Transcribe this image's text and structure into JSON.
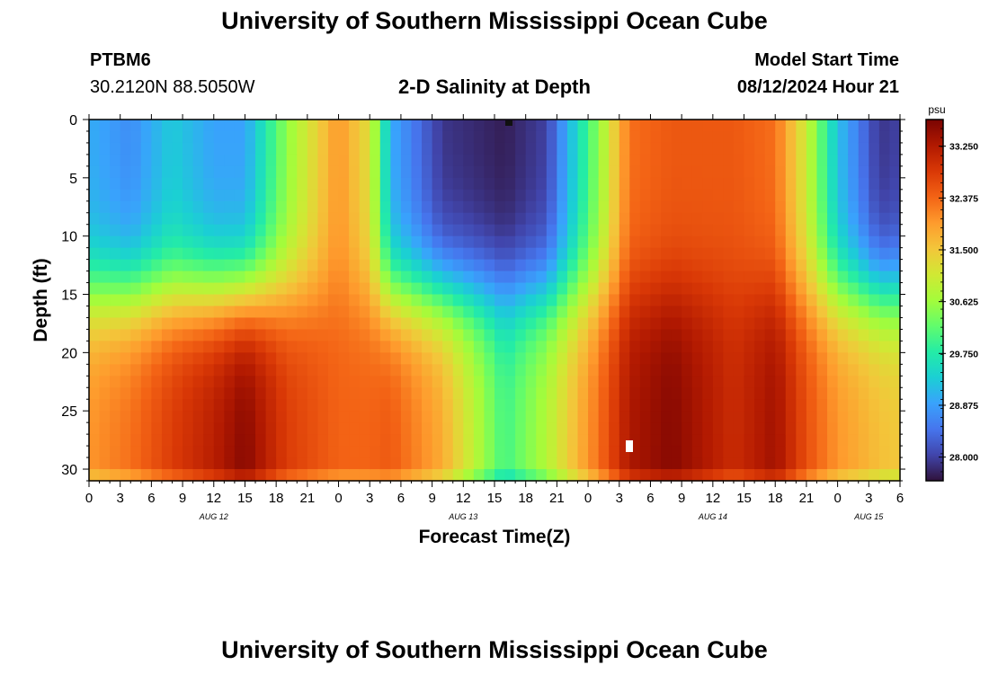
{
  "header": {
    "title": "University of Southern Mississippi Ocean Cube",
    "station_id": "PTBM6",
    "coordinates": "30.2120N  88.5050W",
    "subtitle": "2-D Salinity at Depth",
    "model_start_label": "Model Start Time",
    "model_start_value": "08/12/2024 Hour 21"
  },
  "footer": {
    "title": "University of Southern Mississippi Ocean Cube"
  },
  "chart_data": {
    "type": "heatmap",
    "title": "2-D Salinity at Depth",
    "xlabel": "Forecast Time(Z)",
    "ylabel": "Depth (ft)",
    "x_hours_range": [
      0,
      78
    ],
    "x_tick_labels": [
      "0",
      "3",
      "6",
      "9",
      "12",
      "15",
      "18",
      "21",
      "0",
      "3",
      "6",
      "9",
      "12",
      "15",
      "18",
      "21",
      "0",
      "3",
      "6",
      "9",
      "12",
      "15",
      "18",
      "21",
      "0",
      "3",
      "6"
    ],
    "date_labels": [
      {
        "label": "AUG 12",
        "hour": 12
      },
      {
        "label": "AUG 13",
        "hour": 36
      },
      {
        "label": "AUG 14",
        "hour": 60
      },
      {
        "label": "AUG 15",
        "hour": 75
      }
    ],
    "ylim": [
      0,
      31
    ],
    "y_ticks": [
      0,
      5,
      10,
      15,
      20,
      25,
      30
    ],
    "colorbar": {
      "unit": "psu",
      "min": 27.6,
      "max": 33.7,
      "tick_labels": [
        "33.250",
        "32.375",
        "31.500",
        "30.625",
        "29.750",
        "28.875",
        "28.000"
      ],
      "tick_values": [
        33.25,
        32.375,
        31.5,
        30.625,
        29.75,
        28.875,
        28.0
      ],
      "colors": [
        "#30123b",
        "#4145ab",
        "#4675ed",
        "#39a2fc",
        "#1bcfd4",
        "#24eca6",
        "#61fc6c",
        "#a4fc3b",
        "#d1e834",
        "#f3c63a",
        "#fe9b2d",
        "#f36315",
        "#d93806",
        "#b11901",
        "#7a0402"
      ]
    },
    "surface_levels": [
      {
        "hour": 0,
        "low": 29.0,
        "high": 32.0
      },
      {
        "hour": 4,
        "low": 28.7,
        "high": 32.3
      },
      {
        "hour": 8,
        "low": 29.3,
        "high": 32.8
      },
      {
        "hour": 12,
        "low": 28.9,
        "high": 33.2
      },
      {
        "hour": 15,
        "low": 28.9,
        "high": 33.6
      },
      {
        "hour": 19,
        "low": 30.5,
        "high": 32.8
      },
      {
        "hour": 24,
        "low": 32.0,
        "high": 32.4
      },
      {
        "hour": 27,
        "low": 31.2,
        "high": 32.4
      },
      {
        "hour": 29,
        "low": 29.0,
        "high": 32.5
      },
      {
        "hour": 34,
        "low": 27.9,
        "high": 31.8
      },
      {
        "hour": 40,
        "low": 27.7,
        "high": 30.0
      },
      {
        "hour": 44,
        "low": 28.0,
        "high": 30.8
      },
      {
        "hour": 49,
        "low": 30.5,
        "high": 32.3
      },
      {
        "hour": 52,
        "low": 32.3,
        "high": 33.3
      },
      {
        "hour": 56,
        "low": 32.5,
        "high": 33.6
      },
      {
        "hour": 62,
        "low": 32.5,
        "high": 33.0
      },
      {
        "hour": 66,
        "low": 32.3,
        "high": 33.4
      },
      {
        "hour": 69,
        "low": 31.0,
        "high": 32.6
      },
      {
        "hour": 72,
        "low": 29.2,
        "high": 32.0
      },
      {
        "hour": 76,
        "low": 27.9,
        "high": 31.6
      },
      {
        "hour": 78,
        "low": 28.0,
        "high": 31.5
      }
    ]
  }
}
